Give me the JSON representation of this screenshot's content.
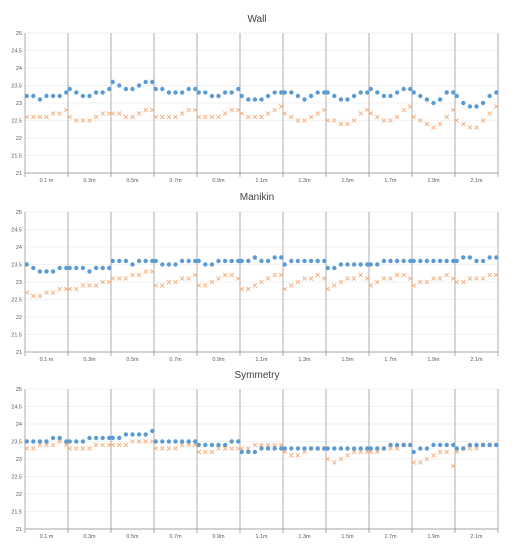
{
  "chart_data": [
    {
      "type": "scatter",
      "title": "Wall",
      "ylim": [
        21,
        25
      ],
      "yticks": [
        "21",
        "21.5",
        "22",
        "22.5",
        "23",
        "23.5",
        "24",
        "24.5",
        "25"
      ],
      "categories": [
        "0.1 m",
        "0.3m",
        "0.5m",
        "0.7m",
        "0.9m",
        "1.1m",
        "1.3m",
        "1.5m",
        "1.7m",
        "1.9m",
        "2.1m"
      ],
      "series": [
        {
          "color": "#5b9bd5",
          "marker": "circle",
          "values": [
            [
              23.2,
              23.2,
              23.1,
              23.2,
              23.2,
              23.2,
              23.3
            ],
            [
              23.4,
              23.3,
              23.2,
              23.2,
              23.3,
              23.3,
              23.4
            ],
            [
              23.6,
              23.5,
              23.4,
              23.4,
              23.5,
              23.6,
              23.6
            ],
            [
              23.4,
              23.4,
              23.3,
              23.3,
              23.3,
              23.4,
              23.4
            ],
            [
              23.3,
              23.3,
              23.2,
              23.2,
              23.3,
              23.3,
              23.4
            ],
            [
              23.2,
              23.1,
              23.1,
              23.1,
              23.2,
              23.3,
              23.3
            ],
            [
              23.3,
              23.3,
              23.2,
              23.1,
              23.2,
              23.3,
              23.3
            ],
            [
              23.3,
              23.2,
              23.1,
              23.1,
              23.2,
              23.3,
              23.3
            ],
            [
              23.4,
              23.3,
              23.2,
              23.2,
              23.3,
              23.4,
              23.4
            ],
            [
              23.3,
              23.2,
              23.1,
              23.0,
              23.1,
              23.3,
              23.3
            ],
            [
              23.2,
              23.0,
              22.9,
              22.9,
              23.0,
              23.2,
              23.3
            ]
          ]
        },
        {
          "color": "#f4b183",
          "marker": "x",
          "values": [
            [
              22.6,
              22.6,
              22.6,
              22.6,
              22.7,
              22.7,
              22.8
            ],
            [
              22.6,
              22.5,
              22.5,
              22.5,
              22.6,
              22.7,
              22.7
            ],
            [
              22.7,
              22.7,
              22.6,
              22.6,
              22.7,
              22.8,
              22.8
            ],
            [
              22.6,
              22.6,
              22.6,
              22.6,
              22.7,
              22.8,
              22.8
            ],
            [
              22.6,
              22.6,
              22.6,
              22.6,
              22.7,
              22.8,
              22.8
            ],
            [
              22.7,
              22.6,
              22.6,
              22.6,
              22.7,
              22.8,
              22.9
            ],
            [
              22.7,
              22.6,
              22.5,
              22.5,
              22.6,
              22.7,
              22.8
            ],
            [
              22.5,
              22.5,
              22.4,
              22.4,
              22.5,
              22.7,
              22.8
            ],
            [
              22.7,
              22.6,
              22.5,
              22.5,
              22.6,
              22.8,
              22.9
            ],
            [
              22.6,
              22.5,
              22.4,
              22.3,
              22.4,
              22.6,
              22.8
            ],
            [
              22.5,
              22.4,
              22.3,
              22.3,
              22.5,
              22.7,
              22.9
            ]
          ]
        }
      ]
    },
    {
      "type": "scatter",
      "title": "Manikin",
      "ylim": [
        21,
        25
      ],
      "yticks": [
        "21",
        "21.5",
        "22",
        "22.5",
        "23",
        "23.5",
        "24",
        "24.5",
        "25"
      ],
      "categories": [
        "0.1 m",
        "0.3m",
        "0.5m",
        "0.7m",
        "0.9m",
        "1.1m",
        "1.3m",
        "1.5m",
        "1.7m",
        "1.9m",
        "2.1m"
      ],
      "series": [
        {
          "color": "#5b9bd5",
          "marker": "circle",
          "values": [
            [
              23.5,
              23.4,
              23.3,
              23.3,
              23.3,
              23.4,
              23.4
            ],
            [
              23.4,
              23.4,
              23.4,
              23.3,
              23.4,
              23.4,
              23.4
            ],
            [
              23.6,
              23.6,
              23.6,
              23.5,
              23.6,
              23.6,
              23.6
            ],
            [
              23.6,
              23.5,
              23.5,
              23.5,
              23.6,
              23.6,
              23.6
            ],
            [
              23.6,
              23.5,
              23.5,
              23.6,
              23.6,
              23.6,
              23.6
            ],
            [
              23.6,
              23.6,
              23.7,
              23.6,
              23.6,
              23.7,
              23.7
            ],
            [
              23.5,
              23.6,
              23.6,
              23.6,
              23.6,
              23.6,
              23.6
            ],
            [
              23.4,
              23.4,
              23.5,
              23.5,
              23.5,
              23.5,
              23.5
            ],
            [
              23.5,
              23.5,
              23.6,
              23.6,
              23.6,
              23.6,
              23.6
            ],
            [
              23.6,
              23.6,
              23.6,
              23.6,
              23.6,
              23.6,
              23.6
            ],
            [
              23.6,
              23.7,
              23.7,
              23.6,
              23.6,
              23.7,
              23.7
            ]
          ]
        },
        {
          "color": "#f4b183",
          "marker": "x",
          "values": [
            [
              22.7,
              22.6,
              22.6,
              22.7,
              22.7,
              22.8,
              22.8
            ],
            [
              22.8,
              22.8,
              22.9,
              22.9,
              22.9,
              23.0,
              23.0
            ],
            [
              23.1,
              23.1,
              23.1,
              23.2,
              23.2,
              23.3,
              23.3
            ],
            [
              22.9,
              22.9,
              23.0,
              23.0,
              23.1,
              23.1,
              23.2
            ],
            [
              22.9,
              22.9,
              23.0,
              23.1,
              23.2,
              23.2,
              23.1
            ],
            [
              22.8,
              22.8,
              22.9,
              23.0,
              23.1,
              23.2,
              23.2
            ],
            [
              22.8,
              22.9,
              23.0,
              23.1,
              23.1,
              23.2,
              23.1
            ],
            [
              22.8,
              22.9,
              23.0,
              23.1,
              23.1,
              23.2,
              23.1
            ],
            [
              22.9,
              23.0,
              23.1,
              23.1,
              23.2,
              23.2,
              23.1
            ],
            [
              22.9,
              23.0,
              23.0,
              23.1,
              23.1,
              23.2,
              23.1
            ],
            [
              23.0,
              23.0,
              23.1,
              23.1,
              23.1,
              23.2,
              23.2
            ]
          ]
        }
      ]
    },
    {
      "type": "scatter",
      "title": "Symmetry",
      "ylim": [
        21,
        25
      ],
      "yticks": [
        "21",
        "21.5",
        "22",
        "22.5",
        "23",
        "23.5",
        "24",
        "24.5",
        "25"
      ],
      "categories": [
        "0.1 m",
        "0.3m",
        "0.5m",
        "0.7m",
        "0.9m",
        "1.1m",
        "1.3m",
        "1.5m",
        "1.7m",
        "1.9m",
        "2.1m"
      ],
      "series": [
        {
          "color": "#5b9bd5",
          "marker": "circle",
          "values": [
            [
              23.5,
              23.5,
              23.5,
              23.5,
              23.6,
              23.6,
              23.5
            ],
            [
              23.5,
              23.5,
              23.5,
              23.6,
              23.6,
              23.6,
              23.6
            ],
            [
              23.6,
              23.6,
              23.7,
              23.7,
              23.7,
              23.7,
              23.8
            ],
            [
              23.5,
              23.5,
              23.5,
              23.5,
              23.5,
              23.5,
              23.5
            ],
            [
              23.4,
              23.4,
              23.4,
              23.4,
              23.4,
              23.5,
              23.5
            ],
            [
              23.2,
              23.2,
              23.2,
              23.3,
              23.3,
              23.3,
              23.3
            ],
            [
              23.3,
              23.3,
              23.3,
              23.3,
              23.3,
              23.3,
              23.3
            ],
            [
              23.3,
              23.3,
              23.3,
              23.3,
              23.3,
              23.3,
              23.3
            ],
            [
              23.3,
              23.3,
              23.3,
              23.4,
              23.4,
              23.4,
              23.4
            ],
            [
              23.2,
              23.3,
              23.3,
              23.4,
              23.4,
              23.4,
              23.4
            ],
            [
              23.3,
              23.3,
              23.4,
              23.4,
              23.4,
              23.4,
              23.4
            ]
          ]
        },
        {
          "color": "#f4b183",
          "marker": "x",
          "values": [
            [
              23.3,
              23.3,
              23.4,
              23.4,
              23.4,
              23.5,
              23.4
            ],
            [
              23.3,
              23.3,
              23.3,
              23.3,
              23.4,
              23.4,
              23.4
            ],
            [
              23.4,
              23.4,
              23.4,
              23.5,
              23.5,
              23.5,
              23.5
            ],
            [
              23.3,
              23.3,
              23.3,
              23.3,
              23.4,
              23.4,
              23.4
            ],
            [
              23.2,
              23.2,
              23.2,
              23.3,
              23.3,
              23.3,
              23.3
            ],
            [
              23.3,
              23.3,
              23.4,
              23.4,
              23.4,
              23.4,
              23.4
            ],
            [
              23.2,
              23.1,
              23.1,
              23.2,
              23.3,
              23.3,
              23.3
            ],
            [
              23.0,
              22.9,
              23.0,
              23.1,
              23.2,
              23.2,
              23.2
            ],
            [
              23.2,
              23.2,
              23.3,
              23.3,
              23.3,
              23.4,
              23.4
            ],
            [
              22.9,
              22.9,
              23.0,
              23.1,
              23.2,
              23.2,
              22.8
            ],
            [
              23.2,
              23.3,
              23.3,
              23.3,
              23.4,
              23.4,
              23.4
            ]
          ]
        }
      ]
    }
  ]
}
